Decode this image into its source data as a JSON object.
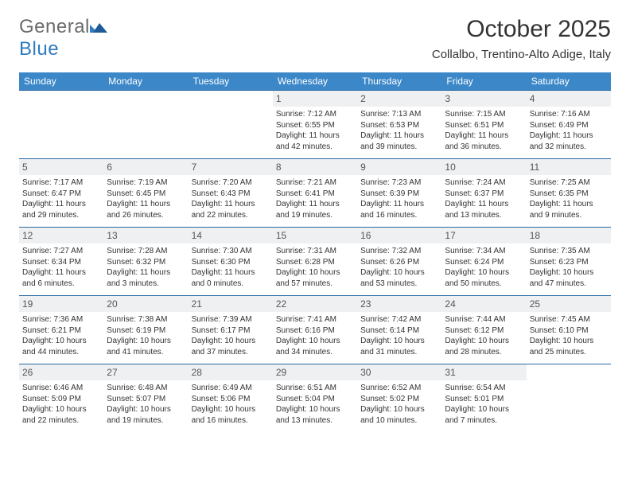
{
  "brand": {
    "part1": "General",
    "part2": "Blue"
  },
  "title": "October 2025",
  "subtitle": "Collalbo, Trentino-Alto Adige, Italy",
  "colors": {
    "header_bg": "#3b87c8",
    "header_text": "#ffffff",
    "row_border": "#2c6aa0",
    "daynum_bg": "#eef0f2",
    "body_text": "#333333",
    "logo_gray": "#6b6b6b",
    "logo_blue": "#2f7bbf",
    "page_bg": "#ffffff"
  },
  "typography": {
    "title_fontsize": 30,
    "subtitle_fontsize": 15,
    "dayheader_fontsize": 12,
    "daynum_fontsize": 12,
    "detail_fontsize": 10
  },
  "day_headers": [
    "Sunday",
    "Monday",
    "Tuesday",
    "Wednesday",
    "Thursday",
    "Friday",
    "Saturday"
  ],
  "weeks": [
    [
      null,
      null,
      null,
      {
        "n": "1",
        "sunrise": "Sunrise: 7:12 AM",
        "sunset": "Sunset: 6:55 PM",
        "daylight": "Daylight: 11 hours and 42 minutes."
      },
      {
        "n": "2",
        "sunrise": "Sunrise: 7:13 AM",
        "sunset": "Sunset: 6:53 PM",
        "daylight": "Daylight: 11 hours and 39 minutes."
      },
      {
        "n": "3",
        "sunrise": "Sunrise: 7:15 AM",
        "sunset": "Sunset: 6:51 PM",
        "daylight": "Daylight: 11 hours and 36 minutes."
      },
      {
        "n": "4",
        "sunrise": "Sunrise: 7:16 AM",
        "sunset": "Sunset: 6:49 PM",
        "daylight": "Daylight: 11 hours and 32 minutes."
      }
    ],
    [
      {
        "n": "5",
        "sunrise": "Sunrise: 7:17 AM",
        "sunset": "Sunset: 6:47 PM",
        "daylight": "Daylight: 11 hours and 29 minutes."
      },
      {
        "n": "6",
        "sunrise": "Sunrise: 7:19 AM",
        "sunset": "Sunset: 6:45 PM",
        "daylight": "Daylight: 11 hours and 26 minutes."
      },
      {
        "n": "7",
        "sunrise": "Sunrise: 7:20 AM",
        "sunset": "Sunset: 6:43 PM",
        "daylight": "Daylight: 11 hours and 22 minutes."
      },
      {
        "n": "8",
        "sunrise": "Sunrise: 7:21 AM",
        "sunset": "Sunset: 6:41 PM",
        "daylight": "Daylight: 11 hours and 19 minutes."
      },
      {
        "n": "9",
        "sunrise": "Sunrise: 7:23 AM",
        "sunset": "Sunset: 6:39 PM",
        "daylight": "Daylight: 11 hours and 16 minutes."
      },
      {
        "n": "10",
        "sunrise": "Sunrise: 7:24 AM",
        "sunset": "Sunset: 6:37 PM",
        "daylight": "Daylight: 11 hours and 13 minutes."
      },
      {
        "n": "11",
        "sunrise": "Sunrise: 7:25 AM",
        "sunset": "Sunset: 6:35 PM",
        "daylight": "Daylight: 11 hours and 9 minutes."
      }
    ],
    [
      {
        "n": "12",
        "sunrise": "Sunrise: 7:27 AM",
        "sunset": "Sunset: 6:34 PM",
        "daylight": "Daylight: 11 hours and 6 minutes."
      },
      {
        "n": "13",
        "sunrise": "Sunrise: 7:28 AM",
        "sunset": "Sunset: 6:32 PM",
        "daylight": "Daylight: 11 hours and 3 minutes."
      },
      {
        "n": "14",
        "sunrise": "Sunrise: 7:30 AM",
        "sunset": "Sunset: 6:30 PM",
        "daylight": "Daylight: 11 hours and 0 minutes."
      },
      {
        "n": "15",
        "sunrise": "Sunrise: 7:31 AM",
        "sunset": "Sunset: 6:28 PM",
        "daylight": "Daylight: 10 hours and 57 minutes."
      },
      {
        "n": "16",
        "sunrise": "Sunrise: 7:32 AM",
        "sunset": "Sunset: 6:26 PM",
        "daylight": "Daylight: 10 hours and 53 minutes."
      },
      {
        "n": "17",
        "sunrise": "Sunrise: 7:34 AM",
        "sunset": "Sunset: 6:24 PM",
        "daylight": "Daylight: 10 hours and 50 minutes."
      },
      {
        "n": "18",
        "sunrise": "Sunrise: 7:35 AM",
        "sunset": "Sunset: 6:23 PM",
        "daylight": "Daylight: 10 hours and 47 minutes."
      }
    ],
    [
      {
        "n": "19",
        "sunrise": "Sunrise: 7:36 AM",
        "sunset": "Sunset: 6:21 PM",
        "daylight": "Daylight: 10 hours and 44 minutes."
      },
      {
        "n": "20",
        "sunrise": "Sunrise: 7:38 AM",
        "sunset": "Sunset: 6:19 PM",
        "daylight": "Daylight: 10 hours and 41 minutes."
      },
      {
        "n": "21",
        "sunrise": "Sunrise: 7:39 AM",
        "sunset": "Sunset: 6:17 PM",
        "daylight": "Daylight: 10 hours and 37 minutes."
      },
      {
        "n": "22",
        "sunrise": "Sunrise: 7:41 AM",
        "sunset": "Sunset: 6:16 PM",
        "daylight": "Daylight: 10 hours and 34 minutes."
      },
      {
        "n": "23",
        "sunrise": "Sunrise: 7:42 AM",
        "sunset": "Sunset: 6:14 PM",
        "daylight": "Daylight: 10 hours and 31 minutes."
      },
      {
        "n": "24",
        "sunrise": "Sunrise: 7:44 AM",
        "sunset": "Sunset: 6:12 PM",
        "daylight": "Daylight: 10 hours and 28 minutes."
      },
      {
        "n": "25",
        "sunrise": "Sunrise: 7:45 AM",
        "sunset": "Sunset: 6:10 PM",
        "daylight": "Daylight: 10 hours and 25 minutes."
      }
    ],
    [
      {
        "n": "26",
        "sunrise": "Sunrise: 6:46 AM",
        "sunset": "Sunset: 5:09 PM",
        "daylight": "Daylight: 10 hours and 22 minutes."
      },
      {
        "n": "27",
        "sunrise": "Sunrise: 6:48 AM",
        "sunset": "Sunset: 5:07 PM",
        "daylight": "Daylight: 10 hours and 19 minutes."
      },
      {
        "n": "28",
        "sunrise": "Sunrise: 6:49 AM",
        "sunset": "Sunset: 5:06 PM",
        "daylight": "Daylight: 10 hours and 16 minutes."
      },
      {
        "n": "29",
        "sunrise": "Sunrise: 6:51 AM",
        "sunset": "Sunset: 5:04 PM",
        "daylight": "Daylight: 10 hours and 13 minutes."
      },
      {
        "n": "30",
        "sunrise": "Sunrise: 6:52 AM",
        "sunset": "Sunset: 5:02 PM",
        "daylight": "Daylight: 10 hours and 10 minutes."
      },
      {
        "n": "31",
        "sunrise": "Sunrise: 6:54 AM",
        "sunset": "Sunset: 5:01 PM",
        "daylight": "Daylight: 10 hours and 7 minutes."
      },
      null
    ]
  ]
}
